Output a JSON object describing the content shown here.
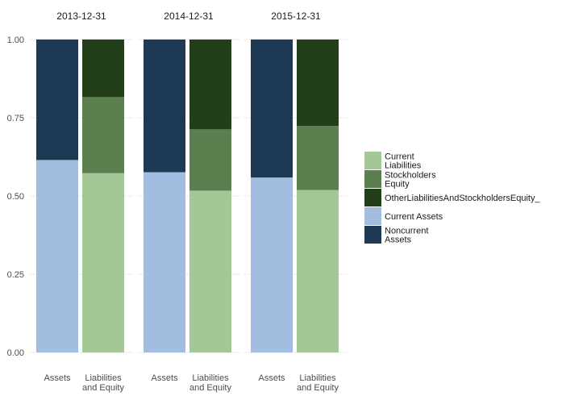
{
  "chart_data": {
    "type": "bar",
    "stacked": "percent",
    "facets": [
      "2013-12-31",
      "2014-12-31",
      "2015-12-31"
    ],
    "categories": [
      "Assets",
      "Liabilities\nand Equity"
    ],
    "ylim": [
      0,
      1
    ],
    "yticks": [
      "0.00",
      "0.25",
      "0.50",
      "0.75",
      "1.00"
    ],
    "grid": true,
    "legend_position": "right",
    "legend": [
      {
        "label": "Current\nLiabilities",
        "color": "#a3c796"
      },
      {
        "label": "Stockholders\nEquity",
        "color": "#5c7f50"
      },
      {
        "label": "OtherLiabilitiesAndStockholdersEquity_",
        "color": "#233f1a"
      },
      {
        "label": "Current Assets",
        "color": "#a3bde0"
      },
      {
        "label": "Noncurrent\nAssets",
        "color": "#1d3954"
      }
    ],
    "data": [
      {
        "facet": "2013-12-31",
        "bars": [
          {
            "category": "Assets",
            "segments": [
              {
                "series": 3,
                "value": 0.615
              },
              {
                "series": 4,
                "value": 0.385
              }
            ]
          },
          {
            "category": "Liabilities\nand Equity",
            "segments": [
              {
                "series": 0,
                "value": 0.573
              },
              {
                "series": 1,
                "value": 0.243
              },
              {
                "series": 2,
                "value": 0.184
              }
            ]
          }
        ]
      },
      {
        "facet": "2014-12-31",
        "bars": [
          {
            "category": "Assets",
            "segments": [
              {
                "series": 3,
                "value": 0.576
              },
              {
                "series": 4,
                "value": 0.424
              }
            ]
          },
          {
            "category": "Liabilities\nand Equity",
            "segments": [
              {
                "series": 0,
                "value": 0.517
              },
              {
                "series": 1,
                "value": 0.196
              },
              {
                "series": 2,
                "value": 0.287
              }
            ]
          }
        ]
      },
      {
        "facet": "2015-12-31",
        "bars": [
          {
            "category": "Assets",
            "segments": [
              {
                "series": 3,
                "value": 0.559
              },
              {
                "series": 4,
                "value": 0.441
              }
            ]
          },
          {
            "category": "Liabilities\nand Equity",
            "segments": [
              {
                "series": 0,
                "value": 0.519
              },
              {
                "series": 1,
                "value": 0.205
              },
              {
                "series": 2,
                "value": 0.276
              }
            ]
          }
        ]
      }
    ]
  }
}
